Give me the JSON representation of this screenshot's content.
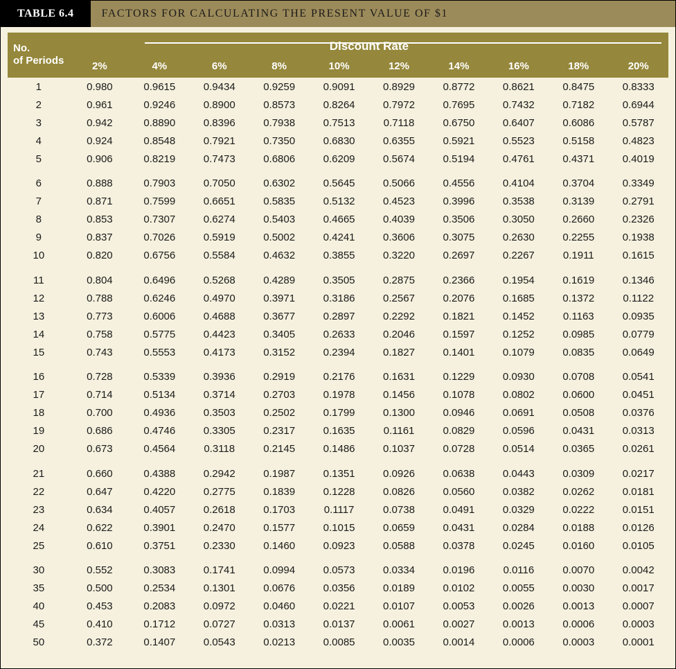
{
  "title": {
    "table_num": "TABLE 6.4",
    "heading": "FACTORS FOR CALCULATING THE PRESENT VALUE OF $1"
  },
  "table": {
    "super_header": "Discount Rate",
    "row_header": "No. of Periods",
    "columns": [
      "2%",
      "4%",
      "6%",
      "8%",
      "10%",
      "12%",
      "14%",
      "16%",
      "18%",
      "20%"
    ],
    "groups": [
      {
        "rows": [
          {
            "period": "1",
            "values": [
              "0.980",
              "0.9615",
              "0.9434",
              "0.9259",
              "0.9091",
              "0.8929",
              "0.8772",
              "0.8621",
              "0.8475",
              "0.8333"
            ]
          },
          {
            "period": "2",
            "values": [
              "0.961",
              "0.9246",
              "0.8900",
              "0.8573",
              "0.8264",
              "0.7972",
              "0.7695",
              "0.7432",
              "0.7182",
              "0.6944"
            ]
          },
          {
            "period": "3",
            "values": [
              "0.942",
              "0.8890",
              "0.8396",
              "0.7938",
              "0.7513",
              "0.7118",
              "0.6750",
              "0.6407",
              "0.6086",
              "0.5787"
            ]
          },
          {
            "period": "4",
            "values": [
              "0.924",
              "0.8548",
              "0.7921",
              "0.7350",
              "0.6830",
              "0.6355",
              "0.5921",
              "0.5523",
              "0.5158",
              "0.4823"
            ]
          },
          {
            "period": "5",
            "values": [
              "0.906",
              "0.8219",
              "0.7473",
              "0.6806",
              "0.6209",
              "0.5674",
              "0.5194",
              "0.4761",
              "0.4371",
              "0.4019"
            ]
          }
        ]
      },
      {
        "rows": [
          {
            "period": "6",
            "values": [
              "0.888",
              "0.7903",
              "0.7050",
              "0.6302",
              "0.5645",
              "0.5066",
              "0.4556",
              "0.4104",
              "0.3704",
              "0.3349"
            ]
          },
          {
            "period": "7",
            "values": [
              "0.871",
              "0.7599",
              "0.6651",
              "0.5835",
              "0.5132",
              "0.4523",
              "0.3996",
              "0.3538",
              "0.3139",
              "0.2791"
            ]
          },
          {
            "period": "8",
            "values": [
              "0.853",
              "0.7307",
              "0.6274",
              "0.5403",
              "0.4665",
              "0.4039",
              "0.3506",
              "0.3050",
              "0.2660",
              "0.2326"
            ]
          },
          {
            "period": "9",
            "values": [
              "0.837",
              "0.7026",
              "0.5919",
              "0.5002",
              "0.4241",
              "0.3606",
              "0.3075",
              "0.2630",
              "0.2255",
              "0.1938"
            ]
          },
          {
            "period": "10",
            "values": [
              "0.820",
              "0.6756",
              "0.5584",
              "0.4632",
              "0.3855",
              "0.3220",
              "0.2697",
              "0.2267",
              "0.1911",
              "0.1615"
            ]
          }
        ]
      },
      {
        "rows": [
          {
            "period": "11",
            "values": [
              "0.804",
              "0.6496",
              "0.5268",
              "0.4289",
              "0.3505",
              "0.2875",
              "0.2366",
              "0.1954",
              "0.1619",
              "0.1346"
            ]
          },
          {
            "period": "12",
            "values": [
              "0.788",
              "0.6246",
              "0.4970",
              "0.3971",
              "0.3186",
              "0.2567",
              "0.2076",
              "0.1685",
              "0.1372",
              "0.1122"
            ]
          },
          {
            "period": "13",
            "values": [
              "0.773",
              "0.6006",
              "0.4688",
              "0.3677",
              "0.2897",
              "0.2292",
              "0.1821",
              "0.1452",
              "0.1163",
              "0.0935"
            ]
          },
          {
            "period": "14",
            "values": [
              "0.758",
              "0.5775",
              "0.4423",
              "0.3405",
              "0.2633",
              "0.2046",
              "0.1597",
              "0.1252",
              "0.0985",
              "0.0779"
            ]
          },
          {
            "period": "15",
            "values": [
              "0.743",
              "0.5553",
              "0.4173",
              "0.3152",
              "0.2394",
              "0.1827",
              "0.1401",
              "0.1079",
              "0.0835",
              "0.0649"
            ]
          }
        ]
      },
      {
        "rows": [
          {
            "period": "16",
            "values": [
              "0.728",
              "0.5339",
              "0.3936",
              "0.2919",
              "0.2176",
              "0.1631",
              "0.1229",
              "0.0930",
              "0.0708",
              "0.0541"
            ]
          },
          {
            "period": "17",
            "values": [
              "0.714",
              "0.5134",
              "0.3714",
              "0.2703",
              "0.1978",
              "0.1456",
              "0.1078",
              "0.0802",
              "0.0600",
              "0.0451"
            ]
          },
          {
            "period": "18",
            "values": [
              "0.700",
              "0.4936",
              "0.3503",
              "0.2502",
              "0.1799",
              "0.1300",
              "0.0946",
              "0.0691",
              "0.0508",
              "0.0376"
            ]
          },
          {
            "period": "19",
            "values": [
              "0.686",
              "0.4746",
              "0.3305",
              "0.2317",
              "0.1635",
              "0.1161",
              "0.0829",
              "0.0596",
              "0.0431",
              "0.0313"
            ]
          },
          {
            "period": "20",
            "values": [
              "0.673",
              "0.4564",
              "0.3118",
              "0.2145",
              "0.1486",
              "0.1037",
              "0.0728",
              "0.0514",
              "0.0365",
              "0.0261"
            ]
          }
        ]
      },
      {
        "rows": [
          {
            "period": "21",
            "values": [
              "0.660",
              "0.4388",
              "0.2942",
              "0.1987",
              "0.1351",
              "0.0926",
              "0.0638",
              "0.0443",
              "0.0309",
              "0.0217"
            ]
          },
          {
            "period": "22",
            "values": [
              "0.647",
              "0.4220",
              "0.2775",
              "0.1839",
              "0.1228",
              "0.0826",
              "0.0560",
              "0.0382",
              "0.0262",
              "0.0181"
            ]
          },
          {
            "period": "23",
            "values": [
              "0.634",
              "0.4057",
              "0.2618",
              "0.1703",
              "0.1117",
              "0.0738",
              "0.0491",
              "0.0329",
              "0.0222",
              "0.0151"
            ]
          },
          {
            "period": "24",
            "values": [
              "0.622",
              "0.3901",
              "0.2470",
              "0.1577",
              "0.1015",
              "0.0659",
              "0.0431",
              "0.0284",
              "0.0188",
              "0.0126"
            ]
          },
          {
            "period": "25",
            "values": [
              "0.610",
              "0.3751",
              "0.2330",
              "0.1460",
              "0.0923",
              "0.0588",
              "0.0378",
              "0.0245",
              "0.0160",
              "0.0105"
            ]
          }
        ]
      },
      {
        "rows": [
          {
            "period": "30",
            "values": [
              "0.552",
              "0.3083",
              "0.1741",
              "0.0994",
              "0.0573",
              "0.0334",
              "0.0196",
              "0.0116",
              "0.0070",
              "0.0042"
            ]
          },
          {
            "period": "35",
            "values": [
              "0.500",
              "0.2534",
              "0.1301",
              "0.0676",
              "0.0356",
              "0.0189",
              "0.0102",
              "0.0055",
              "0.0030",
              "0.0017"
            ]
          },
          {
            "period": "40",
            "values": [
              "0.453",
              "0.2083",
              "0.0972",
              "0.0460",
              "0.0221",
              "0.0107",
              "0.0053",
              "0.0026",
              "0.0013",
              "0.0007"
            ]
          },
          {
            "period": "45",
            "values": [
              "0.410",
              "0.1712",
              "0.0727",
              "0.0313",
              "0.0137",
              "0.0061",
              "0.0027",
              "0.0013",
              "0.0006",
              "0.0003"
            ]
          },
          {
            "period": "50",
            "values": [
              "0.372",
              "0.1407",
              "0.0543",
              "0.0213",
              "0.0085",
              "0.0035",
              "0.0014",
              "0.0006",
              "0.0003",
              "0.0001"
            ]
          }
        ]
      }
    ]
  },
  "colors": {
    "page_bg": "#f5f1de",
    "header_bg": "#95873b",
    "title_tab_bg": "#000000",
    "title_bar_bg": "#9c8b5a",
    "header_text": "#ffffff",
    "body_text": "#1a1a1a"
  }
}
